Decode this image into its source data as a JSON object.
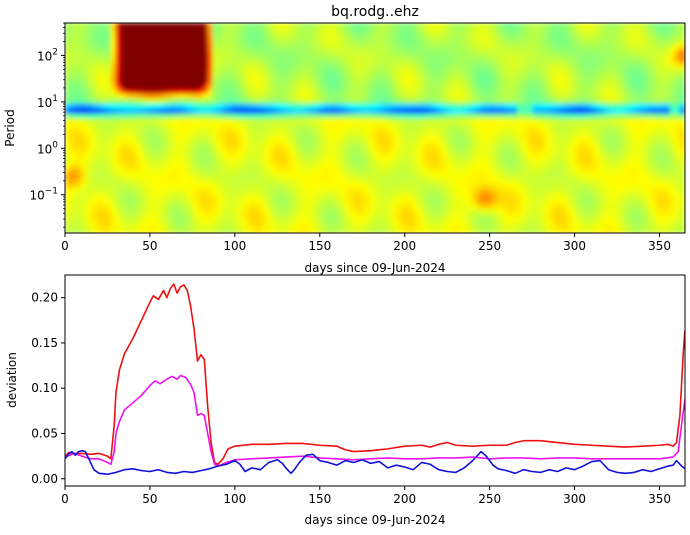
{
  "chart_data": [
    {
      "type": "heatmap",
      "title": "bq.rodg..ehz",
      "xlabel": "days since 09-Jun-2024",
      "ylabel": "Period",
      "xlim": [
        0,
        365
      ],
      "ylim": [
        0.015,
        500
      ],
      "y_scale": "log",
      "x_ticks": [
        0,
        50,
        100,
        150,
        200,
        250,
        300,
        350
      ],
      "x_tick_labels": [
        "0",
        "50",
        "100",
        "150",
        "200",
        "250",
        "300",
        "350"
      ],
      "y_ticks": [
        0.1,
        1,
        10,
        100
      ],
      "y_tick_labels": [
        {
          "base": "10",
          "exp": "−1"
        },
        {
          "base": "10",
          "exp": "0"
        },
        {
          "base": "10",
          "exp": "1"
        },
        {
          "base": "10",
          "exp": "2"
        }
      ],
      "colormap": "jet",
      "features": {
        "background_level": 0.55,
        "blue_band": {
          "period_center": 7,
          "level": 0.2,
          "gaps_days": [
            [
              265,
              275
            ],
            [
              355,
              362
            ]
          ]
        },
        "hot_patch": {
          "days": [
            30,
            85
          ],
          "period_min": 12,
          "level_core": 1.0
        },
        "yellow_spots": [
          {
            "day": 5,
            "period": 0.25,
            "level": 0.7
          },
          {
            "day": 247,
            "period": 0.08,
            "level": 0.72
          },
          {
            "day": 365,
            "period": 100,
            "level": 0.75
          }
        ]
      }
    },
    {
      "type": "line",
      "title": "",
      "xlabel": "days since 09-Jun-2024",
      "ylabel": "deviation",
      "xlim": [
        0,
        365
      ],
      "ylim": [
        -0.008,
        0.225
      ],
      "x_ticks": [
        0,
        50,
        100,
        150,
        200,
        250,
        300,
        350
      ],
      "x_tick_labels": [
        "0",
        "50",
        "100",
        "150",
        "200",
        "250",
        "300",
        "350"
      ],
      "y_ticks": [
        0.0,
        0.05,
        0.1,
        0.15,
        0.2
      ],
      "y_tick_labels": [
        "0.00",
        "0.05",
        "0.10",
        "0.15",
        "0.20"
      ],
      "series": [
        {
          "color": "#ee1111",
          "points": [
            [
              0,
              0.024
            ],
            [
              2,
              0.029
            ],
            [
              5,
              0.028
            ],
            [
              10,
              0.028
            ],
            [
              15,
              0.027
            ],
            [
              20,
              0.028
            ],
            [
              25,
              0.025
            ],
            [
              27,
              0.022
            ],
            [
              29,
              0.06
            ],
            [
              30,
              0.095
            ],
            [
              32,
              0.12
            ],
            [
              35,
              0.138
            ],
            [
              40,
              0.155
            ],
            [
              45,
              0.175
            ],
            [
              50,
              0.195
            ],
            [
              52,
              0.202
            ],
            [
              55,
              0.198
            ],
            [
              58,
              0.208
            ],
            [
              60,
              0.2
            ],
            [
              62,
              0.21
            ],
            [
              64,
              0.215
            ],
            [
              66,
              0.205
            ],
            [
              68,
              0.212
            ],
            [
              70,
              0.214
            ],
            [
              72,
              0.208
            ],
            [
              74,
              0.19
            ],
            [
              76,
              0.165
            ],
            [
              78,
              0.13
            ],
            [
              80,
              0.137
            ],
            [
              82,
              0.132
            ],
            [
              84,
              0.08
            ],
            [
              86,
              0.04
            ],
            [
              88,
              0.018
            ],
            [
              90,
              0.016
            ],
            [
              93,
              0.022
            ],
            [
              96,
              0.033
            ],
            [
              100,
              0.036
            ],
            [
              110,
              0.038
            ],
            [
              120,
              0.038
            ],
            [
              130,
              0.039
            ],
            [
              140,
              0.039
            ],
            [
              150,
              0.037
            ],
            [
              160,
              0.036
            ],
            [
              165,
              0.032
            ],
            [
              170,
              0.03
            ],
            [
              180,
              0.031
            ],
            [
              190,
              0.033
            ],
            [
              200,
              0.036
            ],
            [
              210,
              0.037
            ],
            [
              215,
              0.035
            ],
            [
              220,
              0.038
            ],
            [
              225,
              0.04
            ],
            [
              230,
              0.037
            ],
            [
              240,
              0.036
            ],
            [
              250,
              0.037
            ],
            [
              260,
              0.037
            ],
            [
              265,
              0.04
            ],
            [
              270,
              0.042
            ],
            [
              280,
              0.042
            ],
            [
              290,
              0.04
            ],
            [
              300,
              0.038
            ],
            [
              310,
              0.037
            ],
            [
              320,
              0.036
            ],
            [
              330,
              0.035
            ],
            [
              340,
              0.036
            ],
            [
              350,
              0.037
            ],
            [
              355,
              0.038
            ],
            [
              358,
              0.036
            ],
            [
              360,
              0.04
            ],
            [
              362,
              0.07
            ],
            [
              364,
              0.14
            ],
            [
              365,
              0.164
            ]
          ]
        },
        {
          "color": "#ee11ee",
          "points": [
            [
              0,
              0.024
            ],
            [
              3,
              0.026
            ],
            [
              5,
              0.028
            ],
            [
              10,
              0.025
            ],
            [
              15,
              0.022
            ],
            [
              20,
              0.022
            ],
            [
              25,
              0.018
            ],
            [
              27,
              0.016
            ],
            [
              29,
              0.03
            ],
            [
              30,
              0.05
            ],
            [
              32,
              0.063
            ],
            [
              35,
              0.076
            ],
            [
              40,
              0.084
            ],
            [
              45,
              0.092
            ],
            [
              50,
              0.103
            ],
            [
              53,
              0.108
            ],
            [
              56,
              0.105
            ],
            [
              60,
              0.11
            ],
            [
              63,
              0.113
            ],
            [
              66,
              0.11
            ],
            [
              68,
              0.114
            ],
            [
              71,
              0.112
            ],
            [
              74,
              0.104
            ],
            [
              76,
              0.095
            ],
            [
              78,
              0.07
            ],
            [
              80,
              0.072
            ],
            [
              82,
              0.07
            ],
            [
              84,
              0.05
            ],
            [
              86,
              0.03
            ],
            [
              88,
              0.016
            ],
            [
              90,
              0.014
            ],
            [
              95,
              0.018
            ],
            [
              100,
              0.021
            ],
            [
              110,
              0.022
            ],
            [
              120,
              0.023
            ],
            [
              130,
              0.024
            ],
            [
              140,
              0.025
            ],
            [
              150,
              0.023
            ],
            [
              160,
              0.022
            ],
            [
              170,
              0.021
            ],
            [
              180,
              0.022
            ],
            [
              190,
              0.023
            ],
            [
              200,
              0.022
            ],
            [
              210,
              0.022
            ],
            [
              220,
              0.023
            ],
            [
              230,
              0.023
            ],
            [
              240,
              0.024
            ],
            [
              250,
              0.022
            ],
            [
              260,
              0.023
            ],
            [
              270,
              0.023
            ],
            [
              280,
              0.022
            ],
            [
              290,
              0.023
            ],
            [
              300,
              0.023
            ],
            [
              310,
              0.022
            ],
            [
              320,
              0.022
            ],
            [
              330,
              0.022
            ],
            [
              340,
              0.022
            ],
            [
              350,
              0.022
            ],
            [
              358,
              0.024
            ],
            [
              361,
              0.03
            ],
            [
              363,
              0.06
            ],
            [
              365,
              0.088
            ]
          ]
        },
        {
          "color": "#1111dd",
          "points": [
            [
              0,
              0.022
            ],
            [
              2,
              0.027
            ],
            [
              4,
              0.03
            ],
            [
              6,
              0.026
            ],
            [
              8,
              0.03
            ],
            [
              10,
              0.031
            ],
            [
              12,
              0.03
            ],
            [
              14,
              0.022
            ],
            [
              17,
              0.01
            ],
            [
              20,
              0.006
            ],
            [
              25,
              0.005
            ],
            [
              30,
              0.007
            ],
            [
              35,
              0.01
            ],
            [
              40,
              0.011
            ],
            [
              45,
              0.009
            ],
            [
              50,
              0.008
            ],
            [
              55,
              0.01
            ],
            [
              60,
              0.007
            ],
            [
              65,
              0.006
            ],
            [
              70,
              0.008
            ],
            [
              75,
              0.007
            ],
            [
              80,
              0.009
            ],
            [
              85,
              0.011
            ],
            [
              90,
              0.014
            ],
            [
              95,
              0.016
            ],
            [
              100,
              0.02
            ],
            [
              103,
              0.016
            ],
            [
              106,
              0.008
            ],
            [
              110,
              0.012
            ],
            [
              115,
              0.01
            ],
            [
              120,
              0.018
            ],
            [
              125,
              0.021
            ],
            [
              128,
              0.017
            ],
            [
              130,
              0.012
            ],
            [
              133,
              0.006
            ],
            [
              135,
              0.01
            ],
            [
              138,
              0.018
            ],
            [
              142,
              0.026
            ],
            [
              146,
              0.027
            ],
            [
              150,
              0.02
            ],
            [
              155,
              0.018
            ],
            [
              160,
              0.015
            ],
            [
              165,
              0.02
            ],
            [
              170,
              0.018
            ],
            [
              175,
              0.021
            ],
            [
              180,
              0.017
            ],
            [
              185,
              0.019
            ],
            [
              190,
              0.012
            ],
            [
              195,
              0.015
            ],
            [
              200,
              0.013
            ],
            [
              205,
              0.01
            ],
            [
              210,
              0.018
            ],
            [
              215,
              0.016
            ],
            [
              220,
              0.01
            ],
            [
              225,
              0.008
            ],
            [
              230,
              0.007
            ],
            [
              235,
              0.012
            ],
            [
              240,
              0.02
            ],
            [
              245,
              0.03
            ],
            [
              248,
              0.025
            ],
            [
              252,
              0.015
            ],
            [
              255,
              0.011
            ],
            [
              260,
              0.009
            ],
            [
              265,
              0.006
            ],
            [
              270,
              0.01
            ],
            [
              275,
              0.008
            ],
            [
              280,
              0.007
            ],
            [
              285,
              0.01
            ],
            [
              290,
              0.008
            ],
            [
              295,
              0.012
            ],
            [
              300,
              0.01
            ],
            [
              305,
              0.014
            ],
            [
              310,
              0.019
            ],
            [
              315,
              0.02
            ],
            [
              320,
              0.01
            ],
            [
              325,
              0.007
            ],
            [
              330,
              0.006
            ],
            [
              335,
              0.007
            ],
            [
              340,
              0.01
            ],
            [
              345,
              0.008
            ],
            [
              350,
              0.011
            ],
            [
              355,
              0.014
            ],
            [
              358,
              0.015
            ],
            [
              360,
              0.02
            ],
            [
              363,
              0.014
            ],
            [
              365,
              0.011
            ]
          ]
        }
      ]
    }
  ]
}
